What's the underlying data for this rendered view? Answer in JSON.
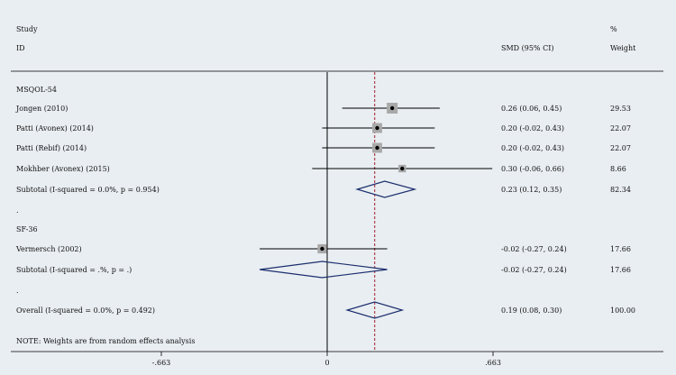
{
  "chart_data": {
    "type": "forest",
    "header": {
      "study": "Study",
      "id": "ID",
      "effect": "SMD (95% CI)",
      "weight_pct": "%",
      "weight": "Weight"
    },
    "x_ticks": [
      {
        "value": -0.663,
        "label": "-.663"
      },
      {
        "value": 0,
        "label": "0"
      },
      {
        "value": 0.663,
        "label": ".663"
      }
    ],
    "xlim": [
      -0.663,
      0.663
    ],
    "reference_line": 0,
    "overall_line": 0.19,
    "rows": [
      {
        "kind": "group",
        "label": "MSQOL-54"
      },
      {
        "kind": "study",
        "label": "Jongen (2010)",
        "est": 0.26,
        "lo": 0.06,
        "hi": 0.45,
        "ci": "0.26 (0.06, 0.45)",
        "weight": "29.53",
        "w": 29.53
      },
      {
        "kind": "study",
        "label": "Patti (Avonex) (2014)",
        "est": 0.2,
        "lo": -0.02,
        "hi": 0.43,
        "ci": "0.20 (-0.02, 0.43)",
        "weight": "22.07",
        "w": 22.07
      },
      {
        "kind": "study",
        "label": "Patti (Rebif) (2014)",
        "est": 0.2,
        "lo": -0.02,
        "hi": 0.43,
        "ci": "0.20 (-0.02, 0.43)",
        "weight": "22.07",
        "w": 22.07
      },
      {
        "kind": "study",
        "label": "Mokhber (Avonex) (2015)",
        "est": 0.3,
        "lo": -0.06,
        "hi": 0.66,
        "ci": "0.30 (-0.06, 0.66)",
        "weight": "8.66",
        "w": 8.66
      },
      {
        "kind": "subtotal",
        "label": "Subtotal  (I-squared = 0.0%, p = 0.954)",
        "est": 0.23,
        "lo": 0.12,
        "hi": 0.35,
        "ci": "0.23 (0.12, 0.35)",
        "weight": "82.34"
      },
      {
        "kind": "spacer",
        "label": "."
      },
      {
        "kind": "group",
        "label": "SF-36"
      },
      {
        "kind": "study",
        "label": "Vermersch (2002)",
        "est": -0.02,
        "lo": -0.27,
        "hi": 0.24,
        "ci": "-0.02 (-0.27, 0.24)",
        "weight": "17.66",
        "w": 17.66
      },
      {
        "kind": "subtotal",
        "label": "Subtotal  (I-squared = .%, p = .)",
        "est": -0.02,
        "lo": -0.27,
        "hi": 0.24,
        "ci": "-0.02 (-0.27, 0.24)",
        "weight": "17.66"
      },
      {
        "kind": "spacer",
        "label": "."
      },
      {
        "kind": "overall",
        "label": "Overall  (I-squared = 0.0%, p = 0.492)",
        "est": 0.19,
        "lo": 0.08,
        "hi": 0.3,
        "ci": "0.19 (0.08, 0.30)",
        "weight": "100.00"
      }
    ],
    "note": "NOTE: Weights are from random effects analysis",
    "colors": {
      "background": "#e9eef2",
      "axis": "#000000",
      "dashed_line": "#a0202a",
      "diamond": "#1c2f6e",
      "weight_box": "#a9a9a9"
    }
  }
}
